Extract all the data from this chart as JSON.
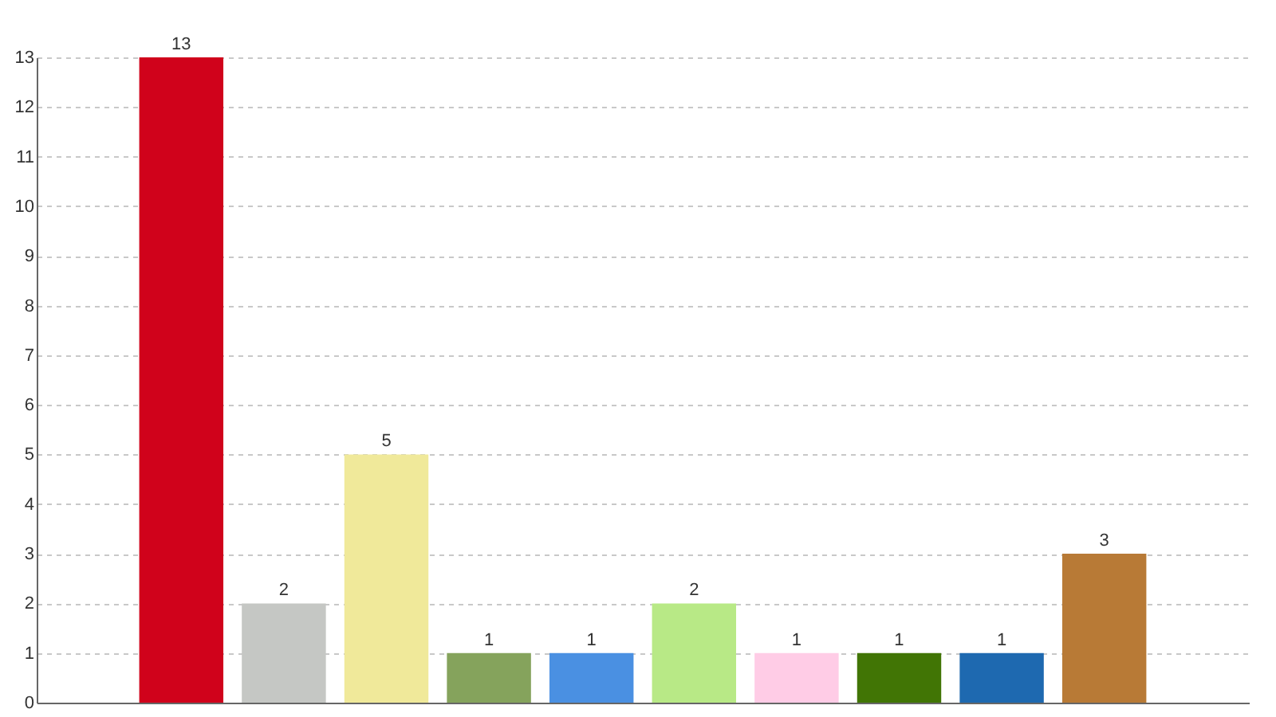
{
  "chart_data": {
    "type": "bar",
    "categories": [
      null,
      null,
      null,
      null,
      null,
      null,
      null,
      null,
      null,
      null
    ],
    "values": [
      13,
      2,
      5,
      1,
      1,
      2,
      1,
      1,
      1,
      3
    ],
    "colors": [
      "#d0021b",
      "#c5c7c4",
      "#f0e99a",
      "#85a35c",
      "#4a90e2",
      "#b8e986",
      "#ffcce6",
      "#417505",
      "#1e69b0",
      "#b87a36"
    ],
    "ylim": [
      0,
      13
    ],
    "yticks": [
      0,
      1,
      2,
      3,
      4,
      5,
      6,
      7,
      8,
      9,
      10,
      11,
      12,
      13
    ],
    "grid": "y",
    "data_labels": true,
    "tick_labels": "y"
  }
}
